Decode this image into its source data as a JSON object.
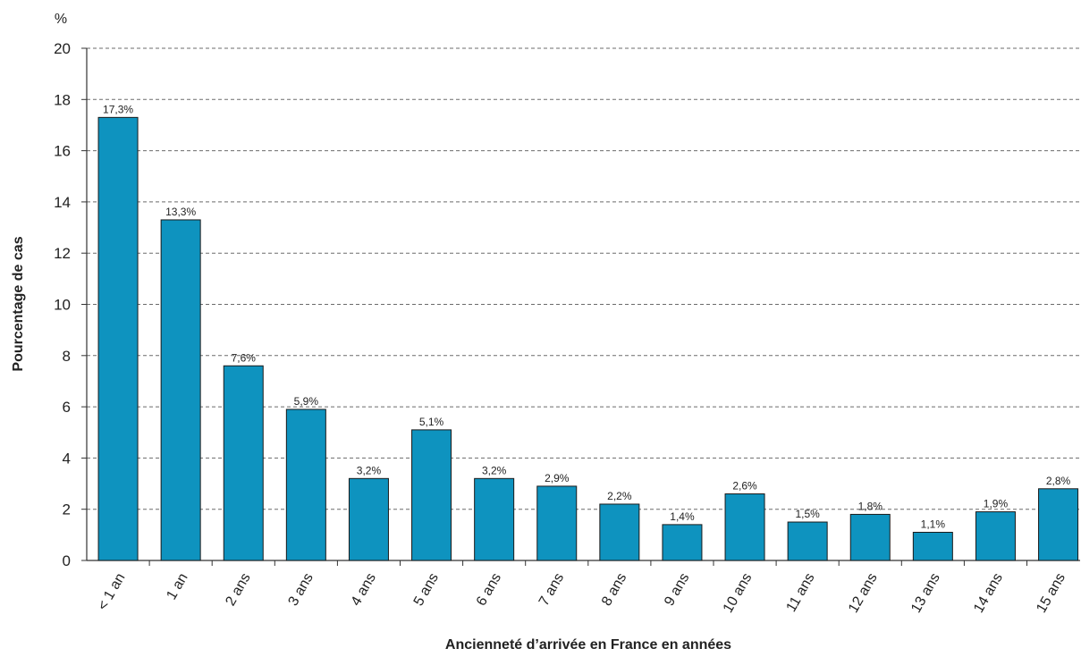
{
  "chart_data": {
    "type": "bar",
    "unit_label": "%",
    "ylabel": "Pourcentage de cas",
    "xlabel": "Ancienneté d’arrivée en France en années",
    "ylim": [
      0,
      20
    ],
    "yticks": [
      0,
      2,
      4,
      6,
      8,
      10,
      12,
      14,
      16,
      18,
      20
    ],
    "grid": true,
    "bar_color": "#0e93bf",
    "categories": [
      "< 1 an",
      "1 an",
      "2 ans",
      "3 ans",
      "4 ans",
      "5 ans",
      "6 ans",
      "7 ans",
      "8 ans",
      "9 ans",
      "10 ans",
      "11 ans",
      "12 ans",
      "13 ans",
      "14 ans",
      "15 ans"
    ],
    "values": [
      17.3,
      13.3,
      7.6,
      5.9,
      3.2,
      5.1,
      3.2,
      2.9,
      2.2,
      1.4,
      2.6,
      1.5,
      1.8,
      1.1,
      1.9,
      2.8
    ],
    "data_labels": [
      "17,3%",
      "13,3%",
      "7,6%",
      "5,9%",
      "3,2%",
      "5,1%",
      "3,2%",
      "2,9%",
      "2,2%",
      "1,4%",
      "2,6%",
      "1,5%",
      "1,8%",
      "1,1%",
      "1,9%",
      "2,8%"
    ]
  }
}
